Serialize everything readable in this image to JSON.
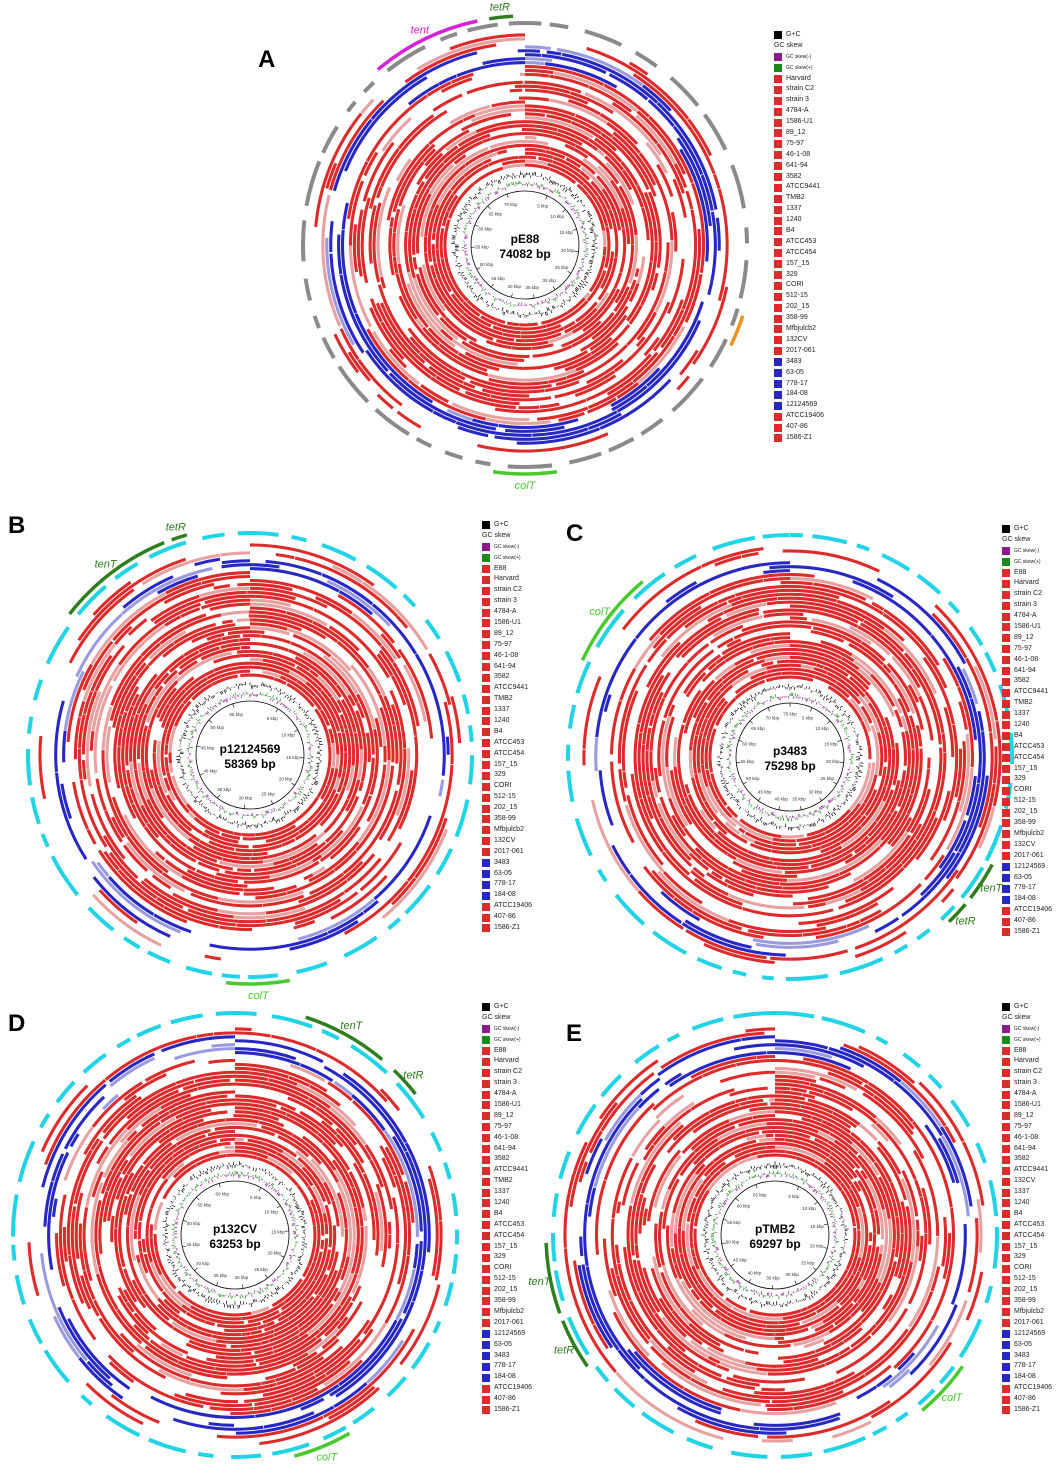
{
  "colors": {
    "red": "#dd2a2a",
    "blue": "#2727c4",
    "lightred": "#e8a0a0",
    "lightblue": "#9a9ae0",
    "gray_outer": "#8a8a8a",
    "cyan_outer": "#22d3e6",
    "gene_green": "#2e7d1e",
    "gene_lime": "#49c92e",
    "gene_magenta": "#d622d6",
    "gene_orange": "#f09020",
    "gc_skew_minus": "#8b1a8b",
    "gc_skew_plus": "#1a8b1a",
    "gc_content": "#000000"
  },
  "legend_header": {
    "gc": "G+C",
    "gc_skew": "GC skew",
    "gc_skew_minus": "GC skew(-)",
    "gc_skew_plus": "GC skew(+)"
  },
  "panels": [
    {
      "letter": "A",
      "plasmid": "pE88",
      "size": "74082 bp",
      "total_kbp": 74,
      "tick_labels": [
        "5 kbp",
        "10 kbp",
        "15 kbp",
        "20 kbp",
        "25 kbp",
        "30 kbp",
        "35 kbp",
        "40 kbp",
        "45 kbp",
        "50 kbp",
        "55 kbp",
        "60 kbp",
        "65 kbp",
        "70 kbp"
      ],
      "outer_color": "gray",
      "genes": [
        {
          "label": "tent",
          "color": "gene_magenta",
          "start_deg": -40,
          "end_deg": -12
        },
        {
          "label": "tetR",
          "color": "gene_green",
          "start_deg": -9,
          "end_deg": -3
        },
        {
          "label": "colT",
          "color": "gene_lime",
          "start_deg": 172,
          "end_deg": 188
        },
        {
          "label": "",
          "color": "gene_orange",
          "start_deg": 108,
          "end_deg": 116
        }
      ],
      "legend": [
        {
          "n": "Harvard",
          "c": "red"
        },
        {
          "n": "strain C2",
          "c": "red"
        },
        {
          "n": "strain 3",
          "c": "red"
        },
        {
          "n": "4784-A",
          "c": "red"
        },
        {
          "n": "1586-U1",
          "c": "red"
        },
        {
          "n": "89_12",
          "c": "red"
        },
        {
          "n": "75-97",
          "c": "red"
        },
        {
          "n": "46-1-08",
          "c": "red"
        },
        {
          "n": "641-94",
          "c": "red"
        },
        {
          "n": "3582",
          "c": "red"
        },
        {
          "n": "ATCC9441",
          "c": "red"
        },
        {
          "n": "TMB2",
          "c": "red"
        },
        {
          "n": "1337",
          "c": "red"
        },
        {
          "n": "1240",
          "c": "red"
        },
        {
          "n": "B4",
          "c": "red"
        },
        {
          "n": "ATCC453",
          "c": "red"
        },
        {
          "n": "ATCC454",
          "c": "red"
        },
        {
          "n": "157_15",
          "c": "red"
        },
        {
          "n": "329",
          "c": "red"
        },
        {
          "n": "CORI",
          "c": "red"
        },
        {
          "n": "512-15",
          "c": "red"
        },
        {
          "n": "202_15",
          "c": "red"
        },
        {
          "n": "358-99",
          "c": "red"
        },
        {
          "n": "Mfbjulcb2",
          "c": "red"
        },
        {
          "n": "132CV",
          "c": "red"
        },
        {
          "n": "2017-061",
          "c": "red"
        },
        {
          "n": "3483",
          "c": "blue"
        },
        {
          "n": "63-05",
          "c": "blue"
        },
        {
          "n": "778-17",
          "c": "blue"
        },
        {
          "n": "184-08",
          "c": "blue"
        },
        {
          "n": "12124569",
          "c": "blue"
        },
        {
          "n": "ATCC19406",
          "c": "red"
        },
        {
          "n": "407-86",
          "c": "red"
        },
        {
          "n": "1586-Z1",
          "c": "red"
        }
      ]
    },
    {
      "letter": "B",
      "plasmid": "p12124569",
      "size": "58369 bp",
      "total_kbp": 58,
      "tick_labels": [
        "5 kbp",
        "10 kbp",
        "15 kbp",
        "20 kbp",
        "25 kbp",
        "30 kbp",
        "35 kbp",
        "40 kbp",
        "45 kbp",
        "50 kbp",
        "55 kbp"
      ],
      "outer_color": "cyan",
      "genes": [
        {
          "label": "tenT",
          "color": "gene_green",
          "start_deg": -52,
          "end_deg": -22
        },
        {
          "label": "tetR",
          "color": "gene_green",
          "start_deg": -20,
          "end_deg": -16
        },
        {
          "label": "colT",
          "color": "gene_lime",
          "start_deg": 170,
          "end_deg": 186
        }
      ],
      "legend": [
        {
          "n": "E88",
          "c": "red"
        },
        {
          "n": "Harvard",
          "c": "red"
        },
        {
          "n": "strain C2",
          "c": "red"
        },
        {
          "n": "strain 3",
          "c": "red"
        },
        {
          "n": "4784-A",
          "c": "red"
        },
        {
          "n": "1586-U1",
          "c": "red"
        },
        {
          "n": "89_12",
          "c": "red"
        },
        {
          "n": "75-97",
          "c": "red"
        },
        {
          "n": "46-1-08",
          "c": "red"
        },
        {
          "n": "641-94",
          "c": "red"
        },
        {
          "n": "3582",
          "c": "red"
        },
        {
          "n": "ATCC9441",
          "c": "red"
        },
        {
          "n": "TMB2",
          "c": "red"
        },
        {
          "n": "1337",
          "c": "red"
        },
        {
          "n": "1240",
          "c": "red"
        },
        {
          "n": "B4",
          "c": "red"
        },
        {
          "n": "ATCC453",
          "c": "red"
        },
        {
          "n": "ATCC454",
          "c": "red"
        },
        {
          "n": "157_15",
          "c": "red"
        },
        {
          "n": "329",
          "c": "red"
        },
        {
          "n": "CORI",
          "c": "red"
        },
        {
          "n": "512-15",
          "c": "red"
        },
        {
          "n": "202_15",
          "c": "red"
        },
        {
          "n": "358-99",
          "c": "red"
        },
        {
          "n": "Mfbjulcb2",
          "c": "red"
        },
        {
          "n": "132CV",
          "c": "red"
        },
        {
          "n": "2017-061",
          "c": "red"
        },
        {
          "n": "3483",
          "c": "blue"
        },
        {
          "n": "63-05",
          "c": "blue"
        },
        {
          "n": "778-17",
          "c": "blue"
        },
        {
          "n": "184-08",
          "c": "blue"
        },
        {
          "n": "ATCC19406",
          "c": "red"
        },
        {
          "n": "407-86",
          "c": "red"
        },
        {
          "n": "1586-Z1",
          "c": "red"
        }
      ]
    },
    {
      "letter": "C",
      "plasmid": "p3483",
      "size": "75298 bp",
      "total_kbp": 75,
      "tick_labels": [
        "5 kbp",
        "10 kbp",
        "15 kbp",
        "20 kbp",
        "25 kbp",
        "30 kbp",
        "35 kbp",
        "40 kbp",
        "45 kbp",
        "50 kbp",
        "55 kbp",
        "60 kbp",
        "65 kbp",
        "70 kbp",
        "75 kbp"
      ],
      "outer_color": "cyan",
      "genes": [
        {
          "label": "colT",
          "color": "gene_lime",
          "start_deg": -65,
          "end_deg": -40
        },
        {
          "label": "tenT",
          "color": "gene_green",
          "start_deg": 118,
          "end_deg": 128
        },
        {
          "label": "tetR",
          "color": "gene_green",
          "start_deg": 130,
          "end_deg": 136
        }
      ],
      "legend": [
        {
          "n": "E88",
          "c": "red"
        },
        {
          "n": "Harvard",
          "c": "red"
        },
        {
          "n": "strain C2",
          "c": "red"
        },
        {
          "n": "strain 3",
          "c": "red"
        },
        {
          "n": "4784-A",
          "c": "red"
        },
        {
          "n": "1586-U1",
          "c": "red"
        },
        {
          "n": "89_12",
          "c": "red"
        },
        {
          "n": "75-97",
          "c": "red"
        },
        {
          "n": "46-1-08",
          "c": "red"
        },
        {
          "n": "641-94",
          "c": "red"
        },
        {
          "n": "3582",
          "c": "red"
        },
        {
          "n": "ATCC9441",
          "c": "red"
        },
        {
          "n": "TMB2",
          "c": "red"
        },
        {
          "n": "1337",
          "c": "red"
        },
        {
          "n": "1240",
          "c": "red"
        },
        {
          "n": "B4",
          "c": "red"
        },
        {
          "n": "ATCC453",
          "c": "red"
        },
        {
          "n": "ATCC454",
          "c": "red"
        },
        {
          "n": "157_15",
          "c": "red"
        },
        {
          "n": "329",
          "c": "red"
        },
        {
          "n": "CORI",
          "c": "red"
        },
        {
          "n": "512-15",
          "c": "red"
        },
        {
          "n": "202_15",
          "c": "red"
        },
        {
          "n": "358-99",
          "c": "red"
        },
        {
          "n": "Mfbjulcb2",
          "c": "red"
        },
        {
          "n": "132CV",
          "c": "red"
        },
        {
          "n": "2017-061",
          "c": "red"
        },
        {
          "n": "12124569",
          "c": "blue"
        },
        {
          "n": "63-05",
          "c": "blue"
        },
        {
          "n": "778-17",
          "c": "blue"
        },
        {
          "n": "184-08",
          "c": "blue"
        },
        {
          "n": "ATCC19406",
          "c": "red"
        },
        {
          "n": "407-86",
          "c": "red"
        },
        {
          "n": "1586-Z1",
          "c": "red"
        }
      ]
    },
    {
      "letter": "D",
      "plasmid": "p132CV",
      "size": "63253 bp",
      "total_kbp": 63,
      "tick_labels": [
        "5 kbp",
        "10 kbp",
        "15 kbp",
        "20 kbp",
        "25 kbp",
        "30 kbp",
        "35 kbp",
        "40 kbp",
        "45 kbp",
        "50 kbp",
        "55 kbp",
        "60 kbp"
      ],
      "outer_color": "cyan",
      "genes": [
        {
          "label": "tenT",
          "color": "gene_green",
          "start_deg": 18,
          "end_deg": 40
        },
        {
          "label": "tetR",
          "color": "gene_green",
          "start_deg": 44,
          "end_deg": 52
        },
        {
          "label": "colT",
          "color": "gene_lime",
          "start_deg": 150,
          "end_deg": 165
        }
      ],
      "legend": [
        {
          "n": "E88",
          "c": "red"
        },
        {
          "n": "Harvard",
          "c": "red"
        },
        {
          "n": "strain C2",
          "c": "red"
        },
        {
          "n": "strain 3",
          "c": "red"
        },
        {
          "n": "4784-A",
          "c": "red"
        },
        {
          "n": "1586-U1",
          "c": "red"
        },
        {
          "n": "89_12",
          "c": "red"
        },
        {
          "n": "75-97",
          "c": "red"
        },
        {
          "n": "46-1-08",
          "c": "red"
        },
        {
          "n": "641-94",
          "c": "red"
        },
        {
          "n": "3582",
          "c": "red"
        },
        {
          "n": "ATCC9441",
          "c": "red"
        },
        {
          "n": "TMB2",
          "c": "red"
        },
        {
          "n": "1337",
          "c": "red"
        },
        {
          "n": "1240",
          "c": "red"
        },
        {
          "n": "B4",
          "c": "red"
        },
        {
          "n": "ATCC453",
          "c": "red"
        },
        {
          "n": "ATCC454",
          "c": "red"
        },
        {
          "n": "157_15",
          "c": "red"
        },
        {
          "n": "329",
          "c": "red"
        },
        {
          "n": "CORI",
          "c": "red"
        },
        {
          "n": "512-15",
          "c": "red"
        },
        {
          "n": "202_15",
          "c": "red"
        },
        {
          "n": "358-99",
          "c": "red"
        },
        {
          "n": "Mfbjulcb2",
          "c": "red"
        },
        {
          "n": "2017-061",
          "c": "red"
        },
        {
          "n": "12124569",
          "c": "blue"
        },
        {
          "n": "63-05",
          "c": "blue"
        },
        {
          "n": "3483",
          "c": "blue"
        },
        {
          "n": "778-17",
          "c": "blue"
        },
        {
          "n": "184-08",
          "c": "blue"
        },
        {
          "n": "ATCC19406",
          "c": "red"
        },
        {
          "n": "407-86",
          "c": "red"
        },
        {
          "n": "1586-Z1",
          "c": "red"
        }
      ]
    },
    {
      "letter": "E",
      "plasmid": "pTMB2",
      "size": "69297 bp",
      "total_kbp": 69,
      "tick_labels": [
        "5 kbp",
        "10 kbp",
        "15 kbp",
        "20 kbp",
        "25 kbp",
        "30 kbp",
        "35 kbp",
        "40 kbp",
        "45 kbp",
        "50 kbp",
        "55 kbp",
        "60 kbp",
        "65 kbp"
      ],
      "outer_color": "cyan",
      "genes": [
        {
          "label": "tetR",
          "color": "gene_green",
          "start_deg": -125,
          "end_deg": -112
        },
        {
          "label": "tenT",
          "color": "gene_green",
          "start_deg": -110,
          "end_deg": -92
        },
        {
          "label": "colT",
          "color": "gene_lime",
          "start_deg": 125,
          "end_deg": 140
        }
      ],
      "legend": [
        {
          "n": "E88",
          "c": "red"
        },
        {
          "n": "Harvard",
          "c": "red"
        },
        {
          "n": "strain C2",
          "c": "red"
        },
        {
          "n": "strain 3",
          "c": "red"
        },
        {
          "n": "4784-A",
          "c": "red"
        },
        {
          "n": "1586-U1",
          "c": "red"
        },
        {
          "n": "89_12",
          "c": "red"
        },
        {
          "n": "75-97",
          "c": "red"
        },
        {
          "n": "46-1-08",
          "c": "red"
        },
        {
          "n": "641-94",
          "c": "red"
        },
        {
          "n": "3582",
          "c": "red"
        },
        {
          "n": "ATCC9441",
          "c": "red"
        },
        {
          "n": "132CV",
          "c": "red"
        },
        {
          "n": "1337",
          "c": "red"
        },
        {
          "n": "1240",
          "c": "red"
        },
        {
          "n": "B4",
          "c": "red"
        },
        {
          "n": "ATCC453",
          "c": "red"
        },
        {
          "n": "ATCC454",
          "c": "red"
        },
        {
          "n": "157_15",
          "c": "red"
        },
        {
          "n": "329",
          "c": "red"
        },
        {
          "n": "CORI",
          "c": "red"
        },
        {
          "n": "512-15",
          "c": "red"
        },
        {
          "n": "202_15",
          "c": "red"
        },
        {
          "n": "358-99",
          "c": "red"
        },
        {
          "n": "Mfbjulcb2",
          "c": "red"
        },
        {
          "n": "2017-061",
          "c": "red"
        },
        {
          "n": "12124569",
          "c": "blue"
        },
        {
          "n": "63-05",
          "c": "blue"
        },
        {
          "n": "3483",
          "c": "blue"
        },
        {
          "n": "778-17",
          "c": "blue"
        },
        {
          "n": "184-08",
          "c": "blue"
        },
        {
          "n": "ATCC19406",
          "c": "red"
        },
        {
          "n": "407-86",
          "c": "red"
        },
        {
          "n": "1586-Z1",
          "c": "red"
        }
      ]
    }
  ]
}
